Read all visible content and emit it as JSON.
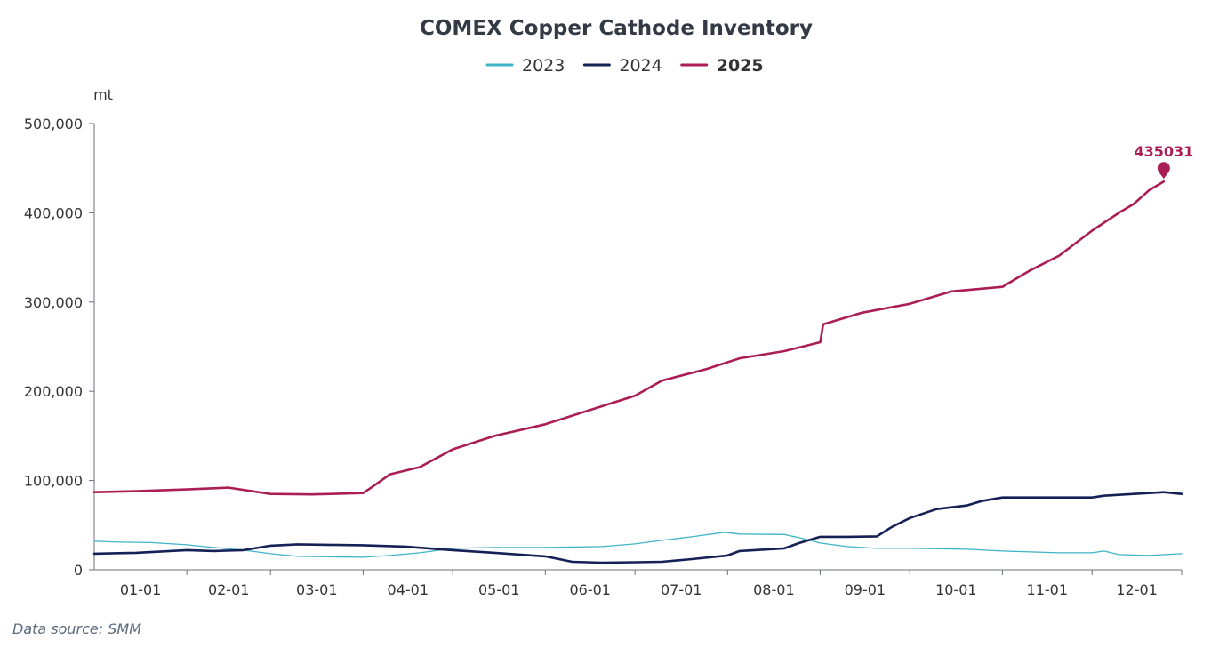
{
  "chart_data": {
    "type": "line",
    "title": "COMEX Copper Cathode Inventory",
    "ylabel": "mt",
    "ylim": [
      0,
      500000
    ],
    "yticks": [
      "0",
      "100,000",
      "200,000",
      "300,000",
      "400,000",
      "500,000"
    ],
    "xticks": [
      "01-01",
      "02-01",
      "03-01",
      "04-01",
      "05-01",
      "06-01",
      "07-01",
      "08-01",
      "09-01",
      "10-01",
      "11-01",
      "12-01"
    ],
    "x_domain": [
      "01-01",
      "12-31"
    ],
    "legend_position": "top-center",
    "source": "Data source:  SMM",
    "series": [
      {
        "name": "2023",
        "color": "#3fb3c8",
        "line_width": 1.3,
        "bold_legend": false,
        "points": [
          [
            "01-01",
            32000
          ],
          [
            "01-10",
            31000
          ],
          [
            "01-20",
            30500
          ],
          [
            "02-01",
            28000
          ],
          [
            "02-10",
            25000
          ],
          [
            "02-20",
            22000
          ],
          [
            "03-01",
            18000
          ],
          [
            "03-10",
            15000
          ],
          [
            "03-20",
            14500
          ],
          [
            "04-01",
            14000
          ],
          [
            "04-10",
            16000
          ],
          [
            "04-20",
            19000
          ],
          [
            "05-01",
            24000
          ],
          [
            "05-15",
            25000
          ],
          [
            "06-01",
            25000
          ],
          [
            "06-20",
            26000
          ],
          [
            "07-01",
            29000
          ],
          [
            "07-10",
            33000
          ],
          [
            "07-20",
            37000
          ],
          [
            "07-31",
            42000
          ],
          [
            "08-05",
            40000
          ],
          [
            "08-20",
            39500
          ],
          [
            "08-25",
            36000
          ],
          [
            "09-01",
            30000
          ],
          [
            "09-10",
            26000
          ],
          [
            "09-20",
            24000
          ],
          [
            "10-01",
            24000
          ],
          [
            "10-20",
            23000
          ],
          [
            "11-01",
            21000
          ],
          [
            "11-20",
            19000
          ],
          [
            "12-01",
            19000
          ],
          [
            "12-05",
            21000
          ],
          [
            "12-10",
            17000
          ],
          [
            "12-20",
            16000
          ],
          [
            "12-31",
            18000
          ]
        ]
      },
      {
        "name": "2024",
        "color": "#152156",
        "line_width": 2.6,
        "bold_legend": false,
        "points": [
          [
            "01-01",
            18000
          ],
          [
            "01-15",
            19000
          ],
          [
            "02-01",
            22000
          ],
          [
            "02-10",
            21000
          ],
          [
            "02-20",
            22000
          ],
          [
            "03-01",
            27000
          ],
          [
            "03-10",
            28500
          ],
          [
            "03-20",
            28000
          ],
          [
            "04-01",
            27500
          ],
          [
            "04-15",
            26000
          ],
          [
            "05-01",
            22000
          ],
          [
            "05-15",
            19000
          ],
          [
            "06-01",
            15000
          ],
          [
            "06-10",
            9000
          ],
          [
            "06-20",
            8000
          ],
          [
            "07-01",
            8500
          ],
          [
            "07-10",
            9000
          ],
          [
            "07-20",
            12000
          ],
          [
            "08-01",
            16000
          ],
          [
            "08-05",
            21000
          ],
          [
            "08-20",
            24000
          ],
          [
            "08-25",
            30000
          ],
          [
            "09-01",
            37000
          ],
          [
            "09-10",
            37000
          ],
          [
            "09-20",
            37500
          ],
          [
            "09-25",
            48000
          ],
          [
            "10-01",
            58000
          ],
          [
            "10-10",
            68000
          ],
          [
            "10-20",
            72000
          ],
          [
            "10-25",
            77000
          ],
          [
            "11-01",
            81000
          ],
          [
            "11-15",
            81000
          ],
          [
            "12-01",
            81000
          ],
          [
            "12-05",
            83000
          ],
          [
            "12-15",
            85000
          ],
          [
            "12-25",
            87000
          ],
          [
            "12-31",
            85000
          ]
        ]
      },
      {
        "name": "2025",
        "color": "#ab1d55",
        "line_width": 2.6,
        "bold_legend": true,
        "points": [
          [
            "01-01",
            87000
          ],
          [
            "01-15",
            88000
          ],
          [
            "02-01",
            90000
          ],
          [
            "02-15",
            92000
          ],
          [
            "03-01",
            85000
          ],
          [
            "03-15",
            84500
          ],
          [
            "04-01",
            86000
          ],
          [
            "04-05",
            95000
          ],
          [
            "04-10",
            107000
          ],
          [
            "04-20",
            115000
          ],
          [
            "05-01",
            135000
          ],
          [
            "05-15",
            150000
          ],
          [
            "06-01",
            163000
          ],
          [
            "06-15",
            178000
          ],
          [
            "07-01",
            195000
          ],
          [
            "07-10",
            212000
          ],
          [
            "07-25",
            225000
          ],
          [
            "08-05",
            237000
          ],
          [
            "08-20",
            245000
          ],
          [
            "09-01",
            255000
          ],
          [
            "09-02",
            275000
          ],
          [
            "09-15",
            288000
          ],
          [
            "10-01",
            298000
          ],
          [
            "10-15",
            312000
          ],
          [
            "11-01",
            317000
          ],
          [
            "11-10",
            335000
          ],
          [
            "11-20",
            352000
          ],
          [
            "12-01",
            380000
          ],
          [
            "12-10",
            400000
          ],
          [
            "12-15",
            410000
          ],
          [
            "12-20",
            425000
          ],
          [
            "12-25",
            435031
          ]
        ],
        "end_marker_label": "435031"
      }
    ]
  }
}
